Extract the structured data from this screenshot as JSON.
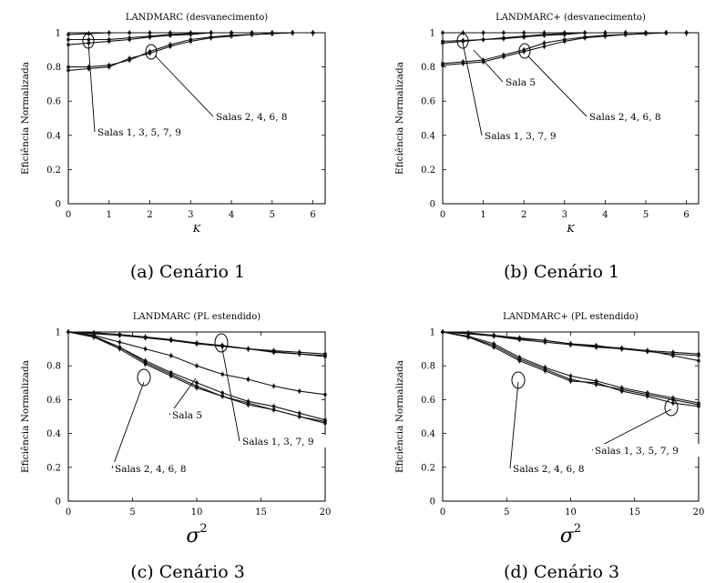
{
  "chart_data": [
    {
      "type": "line",
      "title": "LANDMARC (desvanecimento)",
      "caption": "(a)  Cenário 1",
      "xlabel": "K",
      "ylabel": "Eficiência Normalizada",
      "xlim": [
        0,
        6.3
      ],
      "ylim": [
        0,
        1
      ],
      "xticks": [
        0,
        1,
        2,
        3,
        4,
        5,
        6
      ],
      "yticks": [
        0,
        0.2,
        0.4,
        0.6,
        0.8,
        1
      ],
      "grid": false,
      "series": [
        {
          "x": [
            0,
            0.5,
            1,
            1.5,
            2,
            2.5,
            3,
            3.5,
            4,
            4.5,
            5,
            5.5,
            6
          ],
          "values": [
            0.96,
            0.96,
            0.96,
            0.97,
            0.98,
            0.99,
            0.995,
            1,
            1,
            1,
            1,
            1,
            1
          ]
        },
        {
          "x": [
            0,
            0.5,
            1,
            1.5,
            2,
            2.5,
            3,
            3.5,
            4,
            4.5,
            5,
            5.5,
            6
          ],
          "values": [
            0.93,
            0.94,
            0.95,
            0.96,
            0.975,
            0.985,
            0.99,
            1,
            1,
            1,
            1,
            1,
            1
          ]
        },
        {
          "x": [
            0,
            0.5,
            1,
            1.5,
            2,
            2.5,
            3,
            3.5,
            4,
            4.5,
            5,
            5.5,
            6
          ],
          "values": [
            0.99,
            0.995,
            1,
            1,
            1,
            1,
            1,
            1,
            1,
            1,
            1,
            1,
            1
          ]
        },
        {
          "x": [
            0,
            0.5,
            1,
            1.5,
            2,
            2.5,
            3,
            3.5,
            4,
            4.5,
            5,
            5.5,
            6
          ],
          "values": [
            0.8,
            0.8,
            0.81,
            0.84,
            0.89,
            0.93,
            0.96,
            0.975,
            0.985,
            0.99,
            0.995,
            1,
            1
          ]
        },
        {
          "x": [
            0,
            0.5,
            1,
            1.5,
            2,
            2.5,
            3,
            3.5,
            4,
            4.5,
            5,
            5.5,
            6
          ],
          "values": [
            0.78,
            0.79,
            0.8,
            0.85,
            0.88,
            0.92,
            0.95,
            0.97,
            0.98,
            0.99,
            0.995,
            1,
            1
          ]
        }
      ],
      "annotations": [
        {
          "text": "Salas 1, 3, 5, 7, 9",
          "x": 0.5,
          "y": 0.95
        },
        {
          "text": "Salas 2, 4, 6, 8",
          "x": 2,
          "y": 0.885
        }
      ]
    },
    {
      "type": "line",
      "title": "LANDMARC+ (desvanecimento)",
      "caption": "(b)  Cenário 1",
      "xlabel": "K",
      "ylabel": "Eficiência Normalizada",
      "xlim": [
        0,
        6.3
      ],
      "ylim": [
        0,
        1
      ],
      "xticks": [
        0,
        1,
        2,
        3,
        4,
        5,
        6
      ],
      "yticks": [
        0,
        0.2,
        0.4,
        0.6,
        0.8,
        1
      ],
      "grid": false,
      "series": [
        {
          "x": [
            0,
            0.5,
            1,
            1.5,
            2,
            2.5,
            3,
            3.5,
            4,
            4.5,
            5,
            5.5,
            6
          ],
          "values": [
            0.95,
            0.955,
            0.96,
            0.97,
            0.98,
            0.99,
            0.995,
            1,
            1,
            1,
            1,
            1,
            1
          ]
        },
        {
          "x": [
            0,
            0.5,
            1,
            1.5,
            2,
            2.5,
            3,
            3.5,
            4,
            4.5,
            5,
            5.5,
            6
          ],
          "values": [
            0.94,
            0.95,
            0.96,
            0.965,
            0.975,
            0.985,
            0.99,
            1,
            1,
            1,
            1,
            1,
            1
          ]
        },
        {
          "x": [
            0,
            0.5,
            1,
            1.5,
            2,
            2.5,
            3,
            3.5,
            4,
            4.5,
            5,
            5.5,
            6
          ],
          "values": [
            1,
            1,
            1,
            1,
            1,
            1,
            1,
            1,
            1,
            1,
            1,
            1,
            1
          ]
        },
        {
          "x": [
            0,
            0.5,
            1,
            1.5,
            2,
            2.5,
            3,
            3.5,
            4,
            4.5,
            5,
            5.5,
            6
          ],
          "values": [
            0.82,
            0.83,
            0.84,
            0.87,
            0.9,
            0.94,
            0.96,
            0.975,
            0.985,
            0.99,
            0.995,
            1,
            1
          ]
        },
        {
          "x": [
            0,
            0.5,
            1,
            1.5,
            2,
            2.5,
            3,
            3.5,
            4,
            4.5,
            5,
            5.5,
            6
          ],
          "values": [
            0.81,
            0.82,
            0.83,
            0.86,
            0.89,
            0.92,
            0.95,
            0.97,
            0.98,
            0.99,
            0.995,
            1,
            1
          ]
        }
      ],
      "annotations": [
        {
          "text": "Sala 5",
          "x": 0.5,
          "y": 0.95
        },
        {
          "text": "Salas 1, 3, 7, 9",
          "x": 0.5,
          "y": 0.95
        },
        {
          "text": "Salas 2, 4, 6, 8",
          "x": 2,
          "y": 0.895
        }
      ]
    },
    {
      "type": "line",
      "title": "LANDMARC (PL estendido)",
      "caption": "(c)  Cenário 3",
      "xlabel": "σ",
      "xlabel_superscript": "2",
      "ylabel": "Eficiência Normalizada",
      "xlim": [
        0,
        20
      ],
      "ylim": [
        0,
        1
      ],
      "xticks": [
        0,
        5,
        10,
        15,
        20
      ],
      "yticks": [
        0,
        0.2,
        0.4,
        0.6,
        0.8,
        1
      ],
      "grid": false,
      "series": [
        {
          "x": [
            0,
            2,
            4,
            6,
            8,
            10,
            12,
            14,
            16,
            18,
            20
          ],
          "values": [
            1,
            0.995,
            0.985,
            0.97,
            0.955,
            0.93,
            0.92,
            0.9,
            0.89,
            0.88,
            0.87
          ]
        },
        {
          "x": [
            0,
            2,
            4,
            6,
            8,
            10,
            12,
            14,
            16,
            18,
            20
          ],
          "values": [
            1,
            0.99,
            0.98,
            0.965,
            0.95,
            0.93,
            0.915,
            0.9,
            0.885,
            0.87,
            0.855
          ]
        },
        {
          "x": [
            0,
            2,
            4,
            6,
            8,
            10,
            12,
            14,
            16,
            18,
            20
          ],
          "values": [
            1,
            0.995,
            0.985,
            0.97,
            0.955,
            0.935,
            0.92,
            0.9,
            0.88,
            0.87,
            0.86
          ]
        },
        {
          "x": [
            0,
            2,
            4,
            6,
            8,
            10,
            12,
            14,
            16,
            18,
            20
          ],
          "values": [
            1,
            0.98,
            0.94,
            0.9,
            0.86,
            0.8,
            0.75,
            0.72,
            0.68,
            0.65,
            0.63
          ]
        },
        {
          "x": [
            0,
            2,
            4,
            6,
            8,
            10,
            12,
            14,
            16,
            18,
            20
          ],
          "values": [
            1,
            0.97,
            0.91,
            0.82,
            0.75,
            0.68,
            0.62,
            0.58,
            0.54,
            0.5,
            0.46
          ]
        },
        {
          "x": [
            0,
            2,
            4,
            6,
            8,
            10,
            12,
            14,
            16,
            18,
            20
          ],
          "values": [
            1,
            0.97,
            0.9,
            0.81,
            0.74,
            0.67,
            0.62,
            0.57,
            0.54,
            0.5,
            0.47
          ]
        },
        {
          "x": [
            0,
            2,
            4,
            6,
            8,
            10,
            12,
            14,
            16,
            18,
            20
          ],
          "values": [
            1,
            0.975,
            0.91,
            0.83,
            0.76,
            0.7,
            0.64,
            0.59,
            0.56,
            0.52,
            0.48
          ]
        }
      ],
      "annotations": [
        {
          "text": "Sala 5",
          "x": 10,
          "y": 0.8
        },
        {
          "text": "Salas 1, 3, 7, 9",
          "x": 12,
          "y": 0.92
        },
        {
          "text": "Salas 2, 4, 6, 8",
          "x": 6,
          "y": 0.82
        }
      ]
    },
    {
      "type": "line",
      "title": "LANDMARC+ (PL estendido)",
      "caption": "(d)  Cenário 3",
      "xlabel": "σ",
      "xlabel_superscript": "2",
      "ylabel": "Eficiência Normalizada",
      "xlim": [
        0,
        20
      ],
      "ylim": [
        0,
        1
      ],
      "xticks": [
        0,
        5,
        10,
        15,
        20
      ],
      "yticks": [
        0,
        0.2,
        0.4,
        0.6,
        0.8,
        1
      ],
      "grid": false,
      "series": [
        {
          "x": [
            0,
            2,
            4,
            6,
            8,
            10,
            12,
            14,
            16,
            18,
            20
          ],
          "values": [
            1,
            0.99,
            0.98,
            0.96,
            0.95,
            0.93,
            0.915,
            0.905,
            0.89,
            0.88,
            0.87
          ]
        },
        {
          "x": [
            0,
            2,
            4,
            6,
            8,
            10,
            12,
            14,
            16,
            18,
            20
          ],
          "values": [
            1,
            0.99,
            0.975,
            0.955,
            0.94,
            0.925,
            0.91,
            0.9,
            0.885,
            0.87,
            0.86
          ]
        },
        {
          "x": [
            0,
            2,
            4,
            6,
            8,
            10,
            12,
            14,
            16,
            18,
            20
          ],
          "values": [
            1,
            0.995,
            0.98,
            0.965,
            0.95,
            0.93,
            0.92,
            0.9,
            0.89,
            0.86,
            0.83
          ]
        },
        {
          "x": [
            0,
            2,
            4,
            6,
            8,
            10,
            12,
            14,
            16,
            18,
            20
          ],
          "values": [
            1,
            0.97,
            0.92,
            0.84,
            0.78,
            0.72,
            0.69,
            0.66,
            0.63,
            0.6,
            0.57
          ]
        },
        {
          "x": [
            0,
            2,
            4,
            6,
            8,
            10,
            12,
            14,
            16,
            18,
            20
          ],
          "values": [
            1,
            0.97,
            0.91,
            0.83,
            0.77,
            0.71,
            0.7,
            0.65,
            0.62,
            0.58,
            0.56
          ]
        },
        {
          "x": [
            0,
            2,
            4,
            6,
            8,
            10,
            12,
            14,
            16,
            18,
            20
          ],
          "values": [
            1,
            0.975,
            0.93,
            0.85,
            0.79,
            0.74,
            0.71,
            0.67,
            0.64,
            0.61,
            0.58
          ]
        }
      ],
      "annotations": [
        {
          "text": "Salas 1, 3, 5, 7, 9",
          "x": 18,
          "y": 0.855
        },
        {
          "text": "Salas 2, 4, 6, 8",
          "x": 6,
          "y": 0.83
        }
      ]
    }
  ]
}
